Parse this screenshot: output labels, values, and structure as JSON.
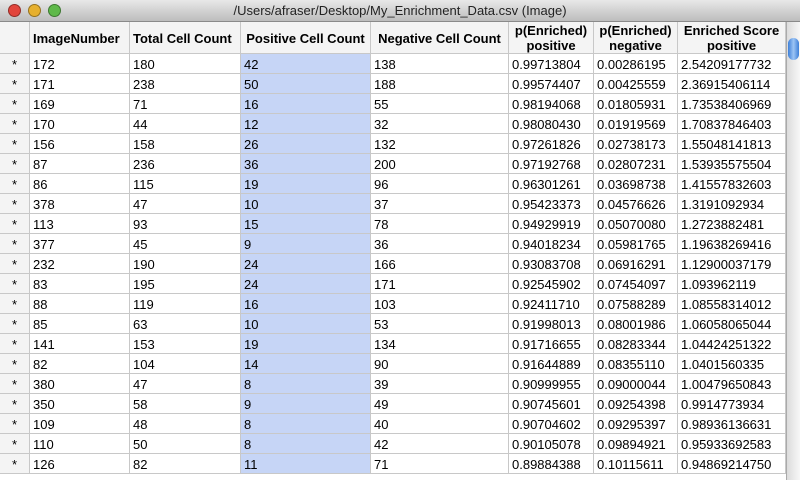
{
  "window": {
    "title": "/Users/afraser/Desktop/My_Enrichment_Data.csv (Image)"
  },
  "table": {
    "columns": [
      "ImageNumber",
      "Total Cell Count",
      "Positive Cell Count",
      "Negative Cell Count",
      "p(Enriched) positive",
      "p(Enriched) negative",
      "Enriched Score positive"
    ],
    "rows": [
      [
        "*",
        "172",
        "180",
        "42",
        "138",
        "0.99713804",
        "0.00286195",
        "2.54209177732"
      ],
      [
        "*",
        "171",
        "238",
        "50",
        "188",
        "0.99574407",
        "0.00425559",
        "2.36915406114"
      ],
      [
        "*",
        "169",
        "71",
        "16",
        "55",
        "0.98194068",
        "0.01805931",
        "1.73538406969"
      ],
      [
        "*",
        "170",
        "44",
        "12",
        "32",
        "0.98080430",
        "0.01919569",
        "1.70837846403"
      ],
      [
        "*",
        "156",
        "158",
        "26",
        "132",
        "0.97261826",
        "0.02738173",
        "1.55048141813"
      ],
      [
        "*",
        "87",
        "236",
        "36",
        "200",
        "0.97192768",
        "0.02807231",
        "1.53935575504"
      ],
      [
        "*",
        "86",
        "115",
        "19",
        "96",
        "0.96301261",
        "0.03698738",
        "1.41557832603"
      ],
      [
        "*",
        "378",
        "47",
        "10",
        "37",
        "0.95423373",
        "0.04576626",
        "1.3191092934"
      ],
      [
        "*",
        "113",
        "93",
        "15",
        "78",
        "0.94929919",
        "0.05070080",
        "1.2723882481"
      ],
      [
        "*",
        "377",
        "45",
        "9",
        "36",
        "0.94018234",
        "0.05981765",
        "1.19638269416"
      ],
      [
        "*",
        "232",
        "190",
        "24",
        "166",
        "0.93083708",
        "0.06916291",
        "1.12900037179"
      ],
      [
        "*",
        "83",
        "195",
        "24",
        "171",
        "0.92545902",
        "0.07454097",
        "1.093962119"
      ],
      [
        "*",
        "88",
        "119",
        "16",
        "103",
        "0.92411710",
        "0.07588289",
        "1.08558314012"
      ],
      [
        "*",
        "85",
        "63",
        "10",
        "53",
        "0.91998013",
        "0.08001986",
        "1.06058065044"
      ],
      [
        "*",
        "141",
        "153",
        "19",
        "134",
        "0.91716655",
        "0.08283344",
        "1.04424251322"
      ],
      [
        "*",
        "82",
        "104",
        "14",
        "90",
        "0.91644889",
        "0.08355110",
        "1.0401560335"
      ],
      [
        "*",
        "380",
        "47",
        "8",
        "39",
        "0.90999955",
        "0.09000044",
        "1.00479650843"
      ],
      [
        "*",
        "350",
        "58",
        "9",
        "49",
        "0.90745601",
        "0.09254398",
        "0.9914773934"
      ],
      [
        "*",
        "109",
        "48",
        "8",
        "40",
        "0.90704602",
        "0.09295397",
        "0.98936136631"
      ],
      [
        "*",
        "110",
        "50",
        "8",
        "42",
        "0.90105078",
        "0.09894921",
        "0.95933692583"
      ],
      [
        "*",
        "126",
        "82",
        "11",
        "71",
        "0.89884388",
        "0.10115611",
        "0.94869214750"
      ]
    ]
  }
}
